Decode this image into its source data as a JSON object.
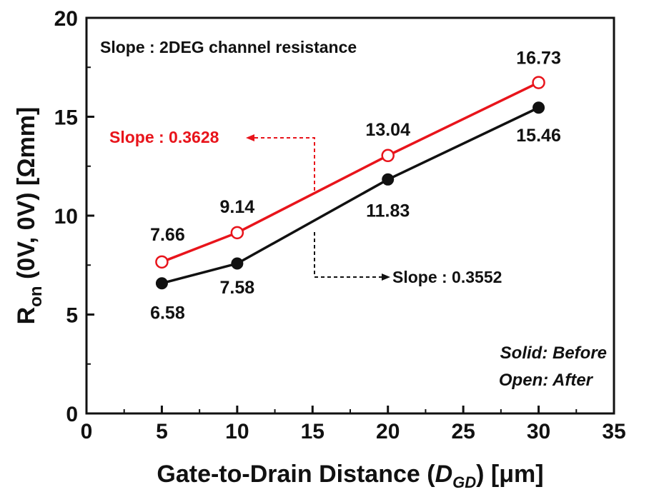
{
  "chart_data": {
    "type": "line",
    "xlabel": {
      "main": "Gate-to-Drain Distance (",
      "var": "D",
      "sub": "GD",
      "tail": ") [μm]"
    },
    "ylabel": {
      "main": "R",
      "sub": "on",
      "tail": " (0V, 0V) [Ωmm]"
    },
    "xlim": [
      0,
      35
    ],
    "ylim": [
      0,
      20
    ],
    "xticks": [
      "0",
      "5",
      "10",
      "15",
      "20",
      "25",
      "30",
      "35"
    ],
    "yticks": [
      "0",
      "5",
      "10",
      "15",
      "20"
    ],
    "series": [
      {
        "name": "Open: After",
        "marker": "open",
        "color": "#e8141b",
        "x": [
          5,
          10,
          20,
          30
        ],
        "y": [
          7.66,
          9.14,
          13.04,
          16.73
        ],
        "labels": [
          "7.66",
          "9.14",
          "13.04",
          "16.73"
        ]
      },
      {
        "name": "Solid: Before",
        "marker": "solid",
        "color": "#111111",
        "x": [
          5,
          10,
          20,
          30
        ],
        "y": [
          6.58,
          7.58,
          11.83,
          15.46
        ],
        "labels": [
          "6.58",
          "7.58",
          "11.83",
          "15.46"
        ]
      }
    ],
    "annotations": {
      "title_note": "Slope : 2DEG channel resistance",
      "after_slope": "Slope : 0.3628",
      "before_slope": "Slope : 0.3552",
      "legend_solid": "Solid: Before",
      "legend_open": "Open: After"
    },
    "grid": false,
    "legend_position": "bottom-right"
  }
}
